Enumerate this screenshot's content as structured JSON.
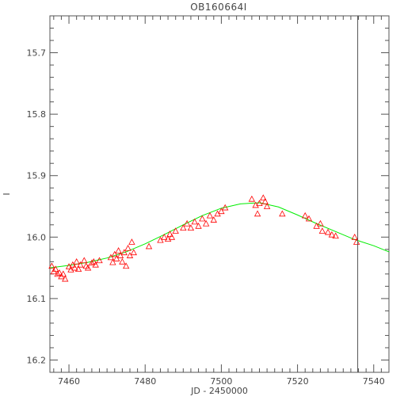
{
  "chart_data": {
    "type": "scatter",
    "title": "OB160664I",
    "xlabel": "JD - 2450000",
    "ylabel": "I",
    "xlim": [
      7455,
      7544
    ],
    "ylim": [
      16.22,
      15.64
    ],
    "y_axis_inverted": true,
    "x_ticks": [
      7460,
      7480,
      7500,
      7520,
      7540
    ],
    "y_ticks": [
      15.7,
      15.8,
      15.9,
      16.0,
      16.1,
      16.2
    ],
    "x_tick_labels": [
      "7460",
      "7480",
      "7500",
      "7520",
      "7540"
    ],
    "y_tick_labels": [
      "15.7",
      "15.8",
      "15.9",
      "16.0",
      "16.1",
      "16.2"
    ],
    "x_minor_step": 2,
    "y_minor_step": 0.02,
    "grid": false,
    "marker": "open-triangle",
    "vertical_line_x": 7535.8,
    "colors": {
      "points": "#ff0000",
      "model": "#00ee00",
      "axes": "#555555",
      "vline": "#555555"
    },
    "series": [
      {
        "points": [
          [
            7455.5,
            16.047
          ],
          [
            7456.0,
            16.056
          ],
          [
            7456.5,
            16.052
          ],
          [
            7457.0,
            16.06
          ],
          [
            7457.5,
            16.058
          ],
          [
            7458.0,
            16.064
          ],
          [
            7458.5,
            16.06
          ],
          [
            7459.0,
            16.068
          ],
          [
            7460.0,
            16.048
          ],
          [
            7460.5,
            16.053
          ],
          [
            7461.0,
            16.045
          ],
          [
            7461.5,
            16.05
          ],
          [
            7462.0,
            16.04
          ],
          [
            7462.5,
            16.052
          ],
          [
            7463.0,
            16.045
          ],
          [
            7464.0,
            16.038
          ],
          [
            7464.5,
            16.047
          ],
          [
            7465.0,
            16.05
          ],
          [
            7466.0,
            16.042
          ],
          [
            7466.5,
            16.04
          ],
          [
            7467.0,
            16.045
          ],
          [
            7468.0,
            16.038
          ],
          [
            7471.0,
            16.033
          ],
          [
            7471.5,
            16.041
          ],
          [
            7472.0,
            16.028
          ],
          [
            7472.5,
            16.035
          ],
          [
            7473.0,
            16.022
          ],
          [
            7473.5,
            16.03
          ],
          [
            7474.0,
            16.04
          ],
          [
            7474.5,
            16.025
          ],
          [
            7475.0,
            16.047
          ],
          [
            7475.5,
            16.018
          ],
          [
            7476.0,
            16.03
          ],
          [
            7476.5,
            16.008
          ],
          [
            7477.0,
            16.025
          ],
          [
            7481.0,
            16.015
          ],
          [
            7484.0,
            16.005
          ],
          [
            7485.0,
            16.0
          ],
          [
            7486.0,
            16.003
          ],
          [
            7486.5,
            15.995
          ],
          [
            7487.0,
            16.0
          ],
          [
            7488.0,
            15.99
          ],
          [
            7490.0,
            15.985
          ],
          [
            7491.0,
            15.978
          ],
          [
            7492.0,
            15.985
          ],
          [
            7493.0,
            15.975
          ],
          [
            7494.0,
            15.982
          ],
          [
            7495.0,
            15.97
          ],
          [
            7496.0,
            15.978
          ],
          [
            7497.0,
            15.965
          ],
          [
            7498.0,
            15.972
          ],
          [
            7499.0,
            15.962
          ],
          [
            7500.0,
            15.958
          ],
          [
            7501.0,
            15.952
          ],
          [
            7508.0,
            15.938
          ],
          [
            7509.0,
            15.948
          ],
          [
            7509.5,
            15.962
          ],
          [
            7510.0,
            15.945
          ],
          [
            7511.0,
            15.936
          ],
          [
            7511.5,
            15.942
          ],
          [
            7512.0,
            15.95
          ],
          [
            7516.0,
            15.962
          ],
          [
            7522.0,
            15.965
          ],
          [
            7523.0,
            15.97
          ],
          [
            7525.0,
            15.982
          ],
          [
            7526.0,
            15.978
          ],
          [
            7526.5,
            15.99
          ],
          [
            7528.0,
            15.992
          ],
          [
            7529.0,
            15.996
          ],
          [
            7530.0,
            15.998
          ],
          [
            7535.0,
            16.0
          ],
          [
            7535.5,
            16.008
          ]
        ]
      }
    ],
    "model_curve": [
      [
        7455,
        16.05
      ],
      [
        7460,
        16.046
      ],
      [
        7465,
        16.041
      ],
      [
        7470,
        16.034
      ],
      [
        7475,
        16.024
      ],
      [
        7480,
        16.011
      ],
      [
        7485,
        15.996
      ],
      [
        7490,
        15.98
      ],
      [
        7495,
        15.965
      ],
      [
        7500,
        15.953
      ],
      [
        7505,
        15.946
      ],
      [
        7510,
        15.944
      ],
      [
        7515,
        15.951
      ],
      [
        7520,
        15.964
      ],
      [
        7525,
        15.978
      ],
      [
        7530,
        15.991
      ],
      [
        7535,
        16.004
      ],
      [
        7540,
        16.014
      ],
      [
        7544,
        16.024
      ]
    ]
  }
}
